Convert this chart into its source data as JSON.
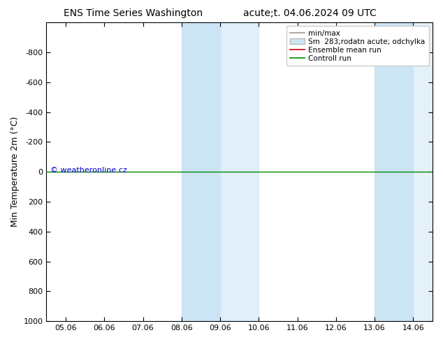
{
  "title_left": "ENS Time Series Washington",
  "title_right": "acute;t. 04.06.2024 09 UTC",
  "ylabel": "Min Temperature 2m (°C)",
  "ylim_bottom": 1000,
  "ylim_top": -1000,
  "yticks": [
    -800,
    -600,
    -400,
    -200,
    0,
    200,
    400,
    600,
    800,
    1000
  ],
  "xtick_labels": [
    "05.06",
    "06.06",
    "07.06",
    "08.06",
    "09.06",
    "10.06",
    "11.06",
    "12.06",
    "13.06",
    "14.06"
  ],
  "xtick_positions": [
    0,
    1,
    2,
    3,
    4,
    5,
    6,
    7,
    8,
    9
  ],
  "xlim": [
    -0.5,
    9.5
  ],
  "shaded_regions": [
    [
      2.5,
      3.5
    ],
    [
      3.5,
      5.0
    ],
    [
      7.5,
      8.5
    ],
    [
      8.5,
      9.5
    ]
  ],
  "shade_colors": [
    "#d0e8f8",
    "#d0e8f8",
    "#d0e8f8",
    "#d0e8f8"
  ],
  "shade_alpha": [
    1.0,
    0.5,
    1.0,
    0.5
  ],
  "green_line_y": 0,
  "green_line_color": "#008800",
  "copyright_text": "© weatheronline.cz",
  "copyright_color": "#0000cc",
  "legend_entries": [
    "min/max",
    "Sm  283;rodatn acute; odchylka",
    "Ensemble mean run",
    "Controll run"
  ],
  "legend_line_colors": [
    "#999999",
    "#bbbbbb",
    "#cc0000",
    "#008800"
  ],
  "background_color": "#ffffff",
  "plot_bg_color": "#ffffff",
  "title_fontsize": 10,
  "axis_label_fontsize": 9,
  "tick_fontsize": 8,
  "legend_fontsize": 7.5
}
